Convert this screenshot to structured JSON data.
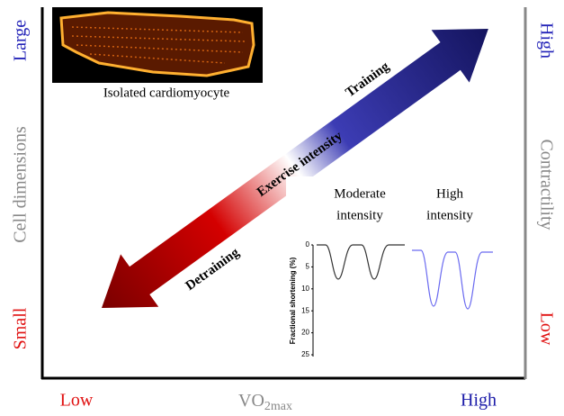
{
  "cell_image": {
    "caption": "Isolated cardiomyocyte"
  },
  "left_axis": {
    "top": "Large",
    "label": "Cell dimensions",
    "bottom": "Small"
  },
  "right_axis": {
    "top": "High",
    "label": "Contractility",
    "bottom": "Low"
  },
  "bottom_axis": {
    "left": "Low",
    "label": "VO",
    "label_sub": "2max",
    "right": "High"
  },
  "arrow": {
    "center": "Exercise intensity",
    "up": "Training",
    "down": "Detraining"
  },
  "inset": {
    "moderate_label": [
      "Moderate",
      "intensity"
    ],
    "high_label": [
      "High",
      "intensity"
    ],
    "y_label": "Fractional shortening (%)",
    "y_ticks": [
      "0",
      "5",
      "10",
      "15",
      "20",
      "25"
    ]
  }
}
